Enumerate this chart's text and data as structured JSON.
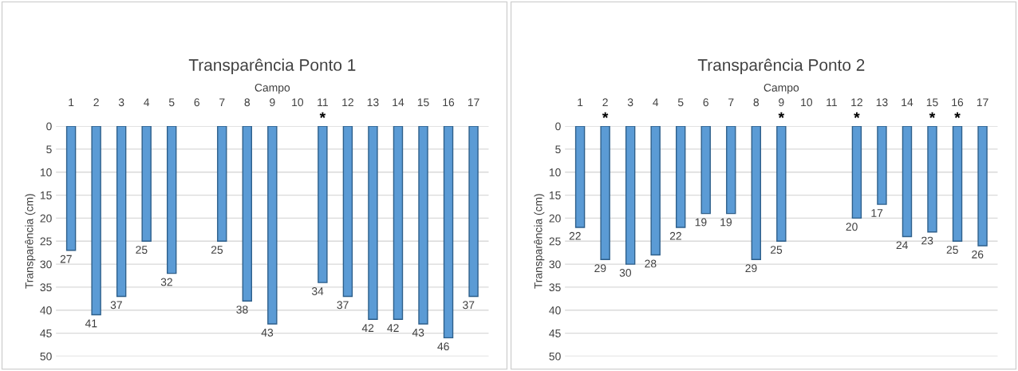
{
  "chart_data": [
    {
      "type": "bar",
      "title": "Transparência Ponto 1",
      "xlabel": "Campo",
      "ylabel": "Transparência (cm)",
      "categories": [
        "1",
        "2",
        "3",
        "4",
        "5",
        "6",
        "7",
        "8",
        "9",
        "10",
        "11",
        "12",
        "13",
        "14",
        "15",
        "16",
        "17"
      ],
      "values": [
        27,
        41,
        37,
        25,
        32,
        null,
        25,
        38,
        43,
        null,
        34,
        37,
        42,
        42,
        43,
        46,
        37
      ],
      "color": "#5b9bd5",
      "ylim": [
        50,
        0
      ],
      "yticks": [
        0,
        5,
        10,
        15,
        20,
        25,
        30,
        35,
        40,
        45,
        50
      ],
      "grid": "y",
      "data_labels": true,
      "annotations": [
        {
          "text": "*",
          "x": "11",
          "y": 0
        }
      ]
    },
    {
      "type": "bar",
      "title": "Transparência Ponto 2",
      "xlabel": "Campo",
      "ylabel": "Transparência (cm)",
      "categories": [
        "1",
        "2",
        "3",
        "4",
        "5",
        "6",
        "7",
        "8",
        "9",
        "10",
        "11",
        "12",
        "13",
        "14",
        "15",
        "16",
        "17"
      ],
      "values": [
        22,
        29,
        30,
        28,
        22,
        19,
        19,
        29,
        25,
        null,
        null,
        20,
        17,
        24,
        23,
        25,
        26
      ],
      "color": "#5b9bd5",
      "ylim": [
        50,
        0
      ],
      "yticks": [
        0,
        5,
        10,
        15,
        20,
        25,
        30,
        35,
        40,
        45,
        50
      ],
      "grid": "y",
      "data_labels": true,
      "annotations": [
        {
          "text": "*",
          "x": "2",
          "y": 0
        },
        {
          "text": "*",
          "x": "9",
          "y": 0
        },
        {
          "text": "*",
          "x": "12",
          "y": 0
        },
        {
          "text": "*",
          "x": "15",
          "y": 0
        },
        {
          "text": "*",
          "x": "16",
          "y": 0
        }
      ]
    }
  ]
}
